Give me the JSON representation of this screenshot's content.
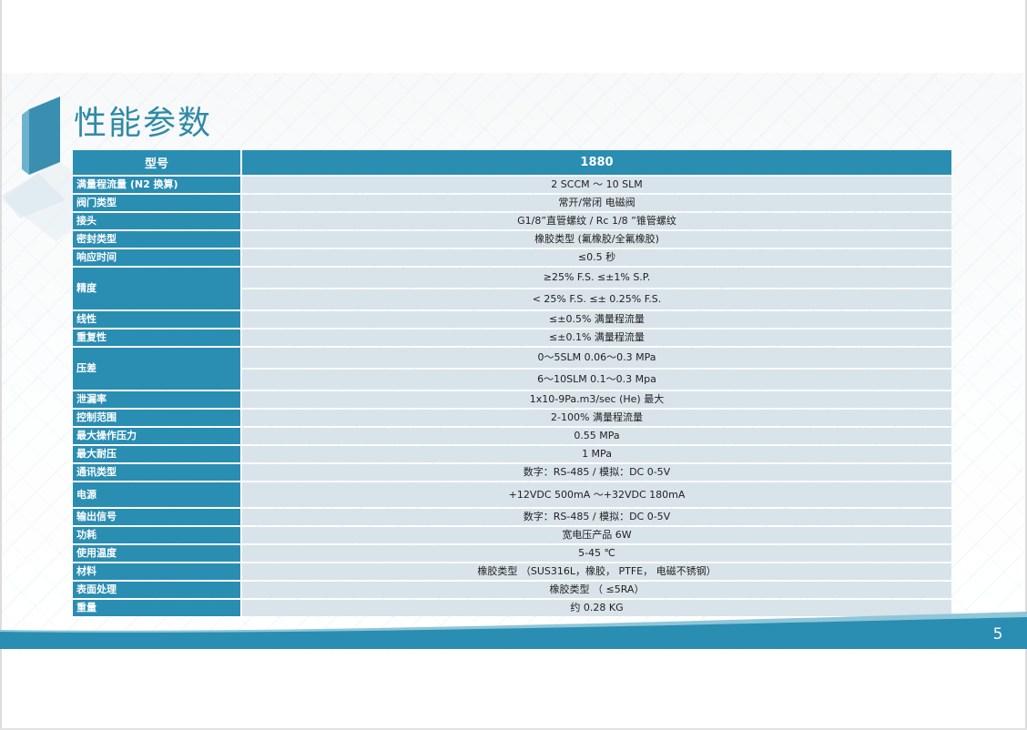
{
  "title": "性能参数",
  "page_number": "5",
  "colors": {
    "accent": "#2a8db2",
    "title": "#2f8aa6",
    "value_bg": "#d9e3ea",
    "band": "#2a8db2"
  },
  "table": {
    "header": {
      "label": "型号",
      "value": "1880"
    },
    "rows": [
      {
        "label": "满量程流量 (N2 换算)",
        "values": [
          "2 SCCM ～ 10 SLM"
        ]
      },
      {
        "label": "阀门类型",
        "values": [
          "常开/常闭 电磁阀"
        ]
      },
      {
        "label": "接头",
        "values": [
          "G1/8”直管螺纹   /  Rc 1/8 ”锥管螺纹"
        ]
      },
      {
        "label": "密封类型",
        "values": [
          "橡胶类型 (氟橡胶/全氟橡胶)"
        ]
      },
      {
        "label": "响应时间",
        "values": [
          "≤0.5 秒"
        ]
      },
      {
        "label": "精度",
        "values": [
          "≥25% F.S.     ≤±1% S.P.",
          "< 25% F.S.     ≤± 0.25% F.S."
        ]
      },
      {
        "label": "线性",
        "values": [
          "≤±0.5% 满量程流量"
        ]
      },
      {
        "label": "重复性",
        "values": [
          "≤±0.1% 满量程流量"
        ]
      },
      {
        "label": "压差",
        "values": [
          "0～5SLM     0.06～0.3 MPa",
          "6～10SLM     0.1～0.3 Mpa"
        ]
      },
      {
        "label": "泄漏率",
        "values": [
          "1x10-9Pa.m3/sec (He) 最大"
        ]
      },
      {
        "label": "控制范围",
        "values": [
          "2-100% 满量程流量"
        ]
      },
      {
        "label": "最大操作压力",
        "values": [
          "0.55 MPa"
        ]
      },
      {
        "label": "最大耐压",
        "values": [
          "1 MPa"
        ]
      },
      {
        "label": "通讯类型",
        "values": [
          "数字：RS-485 / 模拟：DC 0-5V"
        ]
      },
      {
        "label": "电源",
        "values": [
          "+12VDC 500mA ～+32VDC 180mA"
        ]
      },
      {
        "label": "输出信号",
        "values": [
          "数字：RS-485 / 模拟：DC 0-5V"
        ]
      },
      {
        "label": "功耗",
        "values": [
          "宽电压产品       6W"
        ]
      },
      {
        "label": "使用温度",
        "values": [
          "5-45 ℃"
        ]
      },
      {
        "label": "材料",
        "values": [
          "橡胶类型        （SUS316L，橡胶，  PTFE，  电磁不锈钢）"
        ]
      },
      {
        "label": "表面处理",
        "values": [
          "橡胶类型       （ ≤5RA）"
        ]
      },
      {
        "label": "重量",
        "values": [
          "约 0.28  KG"
        ]
      }
    ]
  }
}
